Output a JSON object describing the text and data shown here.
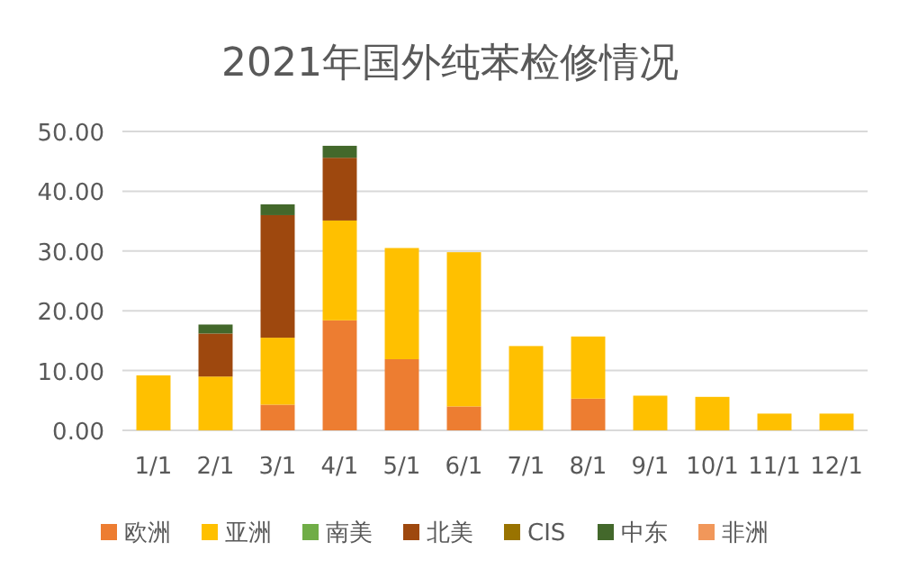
{
  "chart_data": {
    "type": "bar",
    "stacked": true,
    "title": "2021年国外纯苯检修情况",
    "categories": [
      "1/1",
      "2/1",
      "3/1",
      "4/1",
      "5/1",
      "6/1",
      "7/1",
      "8/1",
      "9/1",
      "10/1",
      "11/1",
      "12/1"
    ],
    "series": [
      {
        "name": "欧洲",
        "color": "#ed7d31",
        "values": [
          null,
          null,
          4.3,
          18.4,
          11.9,
          4.0,
          null,
          5.3,
          null,
          null,
          null,
          null
        ]
      },
      {
        "name": "亚洲",
        "color": "#ffc000",
        "values": [
          9.2,
          9.0,
          11.2,
          16.7,
          18.6,
          25.8,
          14.1,
          10.4,
          5.8,
          5.6,
          2.8,
          2.8
        ]
      },
      {
        "name": "南美",
        "color": "#70ad47",
        "values": [
          null,
          null,
          null,
          null,
          null,
          null,
          null,
          null,
          null,
          null,
          null,
          null
        ]
      },
      {
        "name": "北美",
        "color": "#9e480e",
        "values": [
          null,
          7.2,
          20.5,
          10.5,
          null,
          null,
          null,
          null,
          null,
          null,
          null,
          null
        ]
      },
      {
        "name": "CIS",
        "color": "#997300",
        "values": [
          null,
          null,
          null,
          null,
          null,
          null,
          null,
          null,
          null,
          null,
          null,
          null
        ]
      },
      {
        "name": "中东",
        "color": "#43682b",
        "values": [
          null,
          1.5,
          1.8,
          2.0,
          null,
          null,
          null,
          null,
          null,
          null,
          null,
          null
        ]
      },
      {
        "name": "非洲",
        "color": "#f1975a",
        "values": [
          null,
          null,
          null,
          null,
          null,
          null,
          null,
          null,
          null,
          null,
          null,
          null
        ]
      }
    ],
    "ylim": [
      0,
      50
    ],
    "yticks": [
      {
        "value": 0,
        "label": "0.00"
      },
      {
        "value": 10,
        "label": "10.00"
      },
      {
        "value": 20,
        "label": "20.00"
      },
      {
        "value": 30,
        "label": "30.00"
      },
      {
        "value": 40,
        "label": "40.00"
      },
      {
        "value": 50,
        "label": "50.00"
      }
    ],
    "grid": "y",
    "legend": "bottom"
  }
}
